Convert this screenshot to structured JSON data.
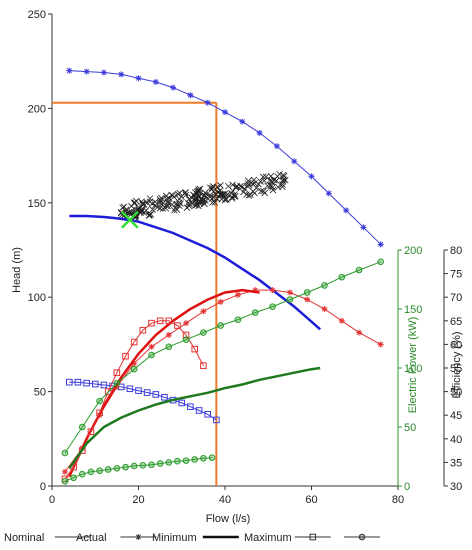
{
  "chart_data": {
    "type": "line",
    "title": "",
    "xlabel": "Flow (l/s)",
    "ylabel": "Head (m)",
    "y2label": "Electric Power (kW)",
    "y3label": "Efficiency (%)",
    "xlim": [
      0,
      80
    ],
    "ylim": [
      0,
      250
    ],
    "y2lim": [
      0,
      200
    ],
    "y3lim": [
      30,
      80
    ],
    "grid": false,
    "legend_position": "bottom",
    "x_ticks": [
      "0",
      "20",
      "40",
      "60",
      "80"
    ],
    "y_ticks": [
      "0",
      "50",
      "100",
      "150",
      "200",
      "250"
    ],
    "y2_ticks": [
      "0",
      "50",
      "100",
      "150",
      "200"
    ],
    "y3_ticks": [
      "30",
      "35",
      "40",
      "45",
      "50",
      "55",
      "60",
      "65",
      "70",
      "75",
      "80"
    ],
    "legend": [
      {
        "label": "Nominal",
        "marker": "none"
      },
      {
        "label": "Actual",
        "marker": "star"
      },
      {
        "label": "Minimum",
        "marker": "line"
      },
      {
        "label": "Maximum",
        "marker": "square"
      },
      {
        "label": "",
        "marker": "circle"
      }
    ],
    "colors": {
      "head": "#3b3bdd",
      "head_nominal": "#1d1dd8",
      "efficiency": "#e33333",
      "power": "#2a9a2a",
      "duty": "#f07a2a",
      "actual_points": "#222222",
      "current_point": "#33dd33"
    },
    "series": [
      {
        "name": "Head Maximum",
        "axis": "y",
        "marker": "star",
        "color": "#3b3bdd",
        "x": [
          4,
          8,
          12,
          16,
          20,
          24,
          28,
          32,
          36,
          40,
          44,
          48,
          52,
          56,
          60,
          64,
          68,
          72,
          76
        ],
        "y": [
          220,
          219.5,
          219,
          218,
          216,
          214,
          211,
          207,
          203,
          198,
          193,
          187,
          180,
          172,
          164,
          155,
          146,
          137,
          128
        ]
      },
      {
        "name": "Head Nominal",
        "axis": "y",
        "marker": "none",
        "color": "#1d1dd8",
        "width": 2.5,
        "x": [
          4,
          8,
          12,
          16,
          20,
          24,
          28,
          32,
          36,
          40,
          44,
          48,
          52,
          56,
          60,
          62
        ],
        "y": [
          143,
          143,
          142.5,
          141.5,
          140,
          137,
          134,
          130,
          126,
          121,
          115,
          109,
          102,
          95,
          87,
          83
        ]
      },
      {
        "name": "Head Minimum",
        "axis": "y",
        "marker": "square",
        "color": "#3b3bdd",
        "x": [
          4,
          6,
          8,
          10,
          12,
          14,
          16,
          18,
          20,
          22,
          24,
          26,
          28,
          30,
          32,
          34,
          36,
          38
        ],
        "y": [
          55,
          55,
          54.5,
          54,
          53.5,
          53,
          52.5,
          51.5,
          50.5,
          49.5,
          48.5,
          47,
          45.5,
          44,
          42,
          40,
          38,
          35
        ]
      },
      {
        "name": "Efficiency Maximum",
        "axis": "y3",
        "marker": "star",
        "color": "#e33333",
        "x": [
          3,
          7,
          11,
          15,
          19,
          23,
          27,
          31,
          35,
          39,
          43,
          47,
          51,
          55,
          59,
          63,
          67,
          71,
          76
        ],
        "y": [
          33,
          38,
          45,
          51,
          56,
          59.5,
          62,
          64.5,
          67,
          69,
          70.5,
          71.5,
          71.5,
          71,
          69.5,
          67.5,
          65,
          62.5,
          60
        ]
      },
      {
        "name": "Efficiency Nominal",
        "axis": "y3",
        "marker": "none",
        "color": "#dd1111",
        "width": 2.5,
        "x": [
          4,
          8,
          12,
          16,
          20,
          24,
          28,
          32,
          36,
          40,
          44,
          48
        ],
        "y": [
          32,
          40,
          47,
          53,
          58,
          62,
          65,
          67.5,
          69.5,
          71,
          71.5,
          71
        ]
      },
      {
        "name": "Efficiency Minimum",
        "axis": "y3",
        "marker": "square",
        "color": "#e33333",
        "x": [
          3,
          5,
          7,
          9,
          11,
          13,
          15,
          17,
          19,
          21,
          23,
          25,
          27,
          29,
          31,
          33,
          35
        ],
        "y": [
          31.5,
          34,
          37.5,
          41.5,
          45.5,
          50,
          54,
          57.5,
          60.5,
          63,
          64.5,
          65,
          65,
          64,
          62,
          59,
          55.5
        ]
      },
      {
        "name": "Power Maximum",
        "axis": "y2",
        "marker": "circle",
        "color": "#2a9a2a",
        "x": [
          3,
          7,
          11,
          15,
          19,
          23,
          27,
          31,
          35,
          39,
          43,
          47,
          51,
          55,
          59,
          63,
          67,
          71,
          76
        ],
        "y": [
          28,
          50,
          72,
          87,
          99,
          111,
          118,
          124,
          130,
          136,
          141,
          147,
          152,
          158,
          164,
          170,
          177,
          183,
          190
        ]
      },
      {
        "name": "Power Nominal",
        "axis": "y2",
        "marker": "none",
        "color": "#1f7a1f",
        "width": 2.5,
        "x": [
          4,
          8,
          12,
          16,
          20,
          24,
          28,
          32,
          36,
          40,
          44,
          48,
          52,
          56,
          60,
          62
        ],
        "y": [
          15,
          36,
          50,
          58,
          64,
          69,
          73,
          76,
          79,
          83,
          86,
          90,
          93,
          96,
          99,
          100
        ]
      },
      {
        "name": "Power Minimum",
        "axis": "y2",
        "marker": "circle",
        "color": "#2a9a2a",
        "x": [
          3,
          5,
          7,
          9,
          11,
          13,
          15,
          17,
          19,
          21,
          23,
          25,
          27,
          29,
          31,
          33,
          35,
          37
        ],
        "y": [
          4,
          7,
          10,
          12,
          13,
          14,
          15,
          16,
          17,
          17.5,
          18,
          19,
          20,
          21,
          21.5,
          22.5,
          23.5,
          24
        ]
      }
    ],
    "duty_point": {
      "flow": 38,
      "head": 203
    },
    "current_point": {
      "flow": 18,
      "head": 141
    },
    "actual_cloud": {
      "x_range": [
        16,
        55
      ],
      "head_start": 145,
      "head_end": 162
    }
  }
}
